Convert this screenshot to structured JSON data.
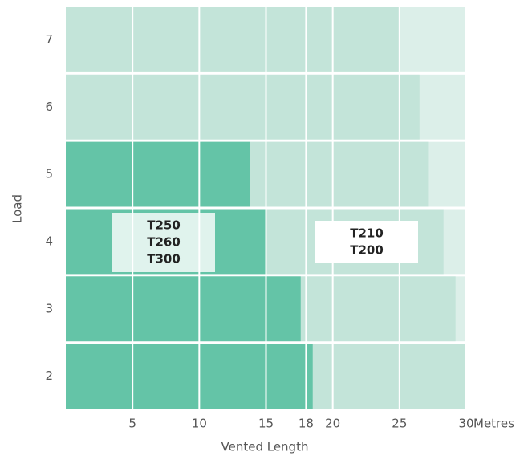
{
  "chart_data": {
    "type": "bar",
    "orientation": "horizontal",
    "x_label": "Vented Length",
    "y_label": "Load",
    "x_unit_label": "Metres",
    "categories": [
      "7",
      "6",
      "5",
      "4",
      "3",
      "2"
    ],
    "background_color": "#dcefe9",
    "series": [
      {
        "color": "#c3e4d9",
        "values": [
          25,
          26.5,
          27.2,
          28.3,
          29.2,
          30
        ]
      },
      {
        "color": "#64c4a7",
        "values": [
          null,
          null,
          13.8,
          15,
          17.6,
          18.5
        ]
      }
    ],
    "xlim": [
      0,
      30
    ],
    "xticks": [
      5,
      10,
      15,
      18,
      20,
      25,
      30
    ],
    "grid": true,
    "annotations": [
      {
        "lines": [
          "T250",
          "T260",
          "T300"
        ]
      },
      {
        "lines": [
          "T210",
          "T200"
        ]
      }
    ]
  }
}
